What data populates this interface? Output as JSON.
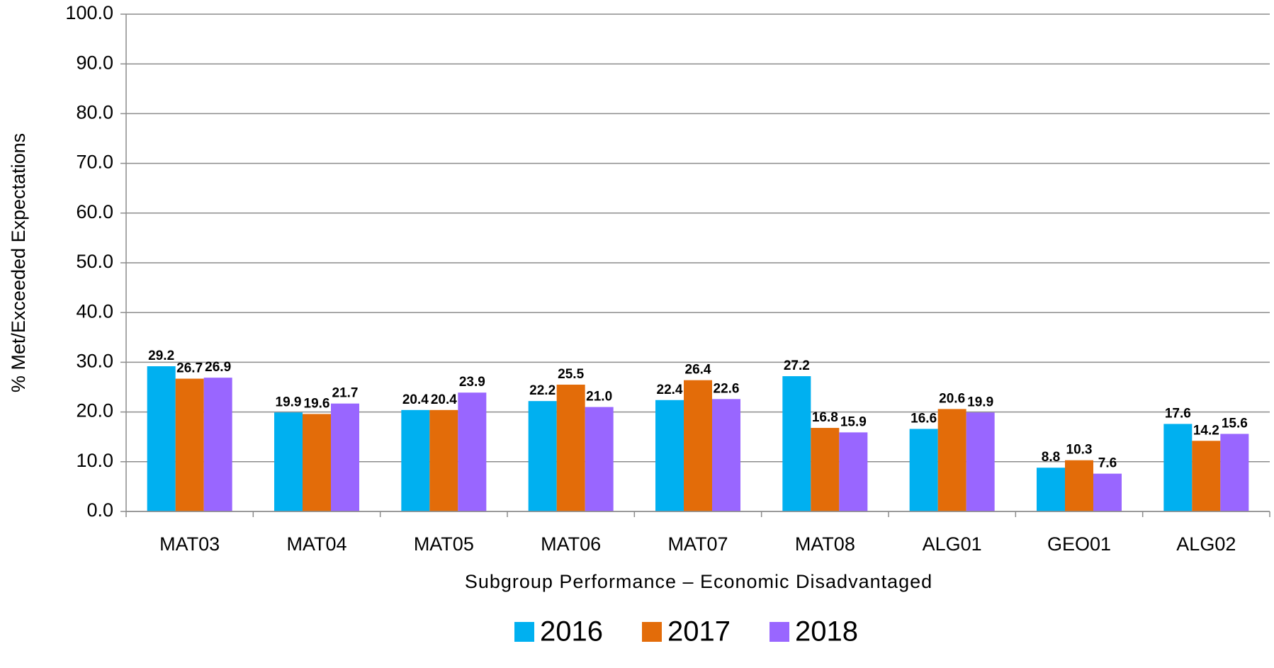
{
  "chart_data": {
    "type": "bar",
    "y_axis_label": "% Met/Exceeded Expectations",
    "x_axis_label": "Subgroup Performance – Economic Disadvantaged",
    "categories": [
      "MAT03",
      "MAT04",
      "MAT05",
      "MAT06",
      "MAT07",
      "MAT08",
      "ALG01",
      "GEO01",
      "ALG02"
    ],
    "series": [
      {
        "name": "2016",
        "color": "#00b0f0",
        "values": [
          29.2,
          19.9,
          20.4,
          22.2,
          22.4,
          27.2,
          16.6,
          8.8,
          17.6
        ],
        "value_labels": [
          "29.2",
          "19.9",
          "20.4",
          "22.2",
          "22.4",
          "27.2",
          "16.6",
          "8.8",
          "17.6"
        ]
      },
      {
        "name": "2017",
        "color": "#e36c09",
        "values": [
          26.7,
          19.6,
          20.4,
          25.5,
          26.4,
          16.8,
          20.6,
          10.3,
          14.2
        ],
        "value_labels": [
          "26.7",
          "19.6",
          "20.4",
          "25.5",
          "26.4",
          "16.8",
          "20.6",
          "10.3",
          "14.2"
        ]
      },
      {
        "name": "2018",
        "color": "#9966ff",
        "values": [
          26.9,
          21.7,
          23.9,
          21.0,
          22.6,
          15.9,
          19.9,
          7.6,
          15.6
        ],
        "value_labels": [
          "26.9",
          "21.7",
          "23.9",
          "21.0",
          "22.6",
          "15.9",
          "19.9",
          "7.6",
          "15.6"
        ]
      }
    ],
    "ylim": [
      0,
      100
    ],
    "yticks": [
      {
        "value": 0,
        "label": "0.0"
      },
      {
        "value": 10,
        "label": "10.0"
      },
      {
        "value": 20,
        "label": "20.0"
      },
      {
        "value": 30,
        "label": "30.0"
      },
      {
        "value": 40,
        "label": "40.0"
      },
      {
        "value": 50,
        "label": "50.0"
      },
      {
        "value": 60,
        "label": "60.0"
      },
      {
        "value": 70,
        "label": "70.0"
      },
      {
        "value": 80,
        "label": "80.0"
      },
      {
        "value": 90,
        "label": "90.0"
      },
      {
        "value": 100,
        "label": "100.0"
      }
    ],
    "grid": true,
    "legend": "bottom"
  }
}
